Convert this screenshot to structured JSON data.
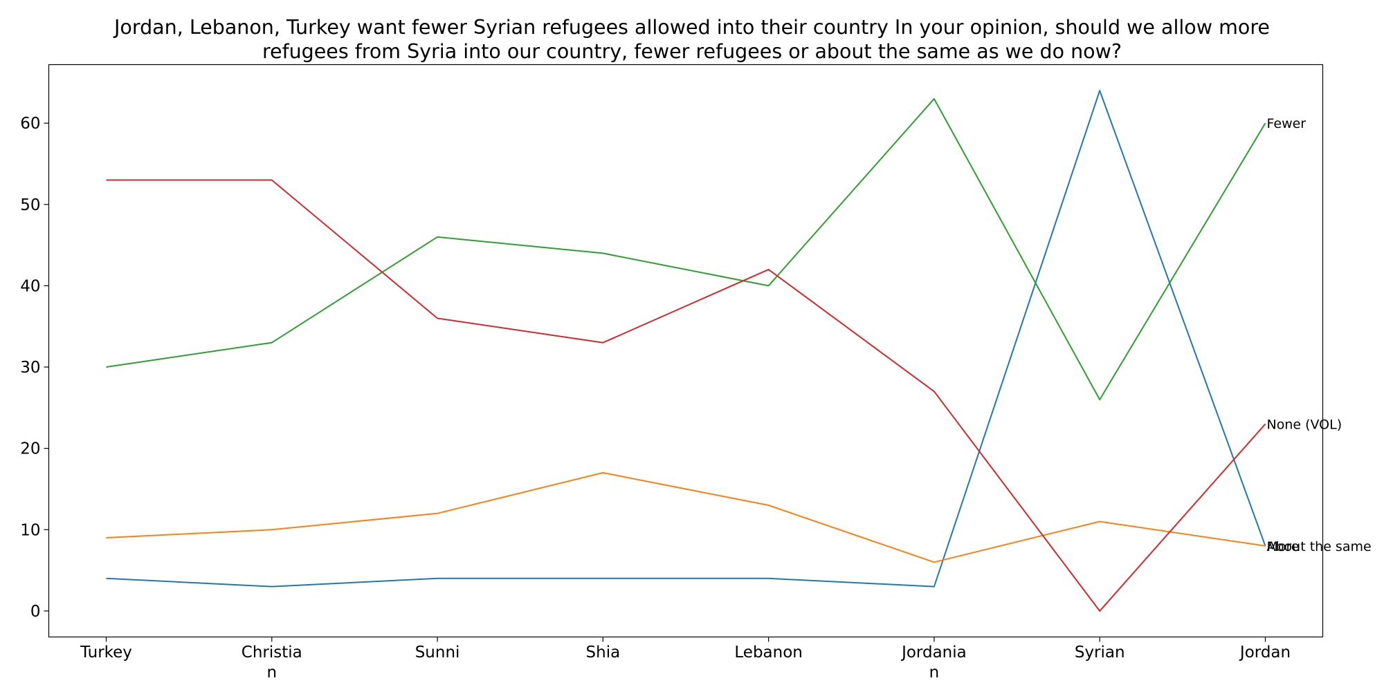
{
  "chart_data": {
    "type": "line",
    "title_lines": [
      "Jordan, Lebanon, Turkey want fewer Syrian refugees allowed into their country In your opinion, should we allow more",
      "refugees from Syria into our country, fewer refugees or about the same as we do now?"
    ],
    "xlabel": "",
    "ylabel": "",
    "categories": [
      [
        "Turkey"
      ],
      [
        "Christia",
        "n"
      ],
      [
        "Sunni"
      ],
      [
        "Shia"
      ],
      [
        "Lebanon"
      ],
      [
        "Jordania",
        "n"
      ],
      [
        "Syrian"
      ],
      [
        "Jordan"
      ]
    ],
    "ylim": [
      -3.2,
      67.2
    ],
    "yticks": [
      0,
      10,
      20,
      30,
      40,
      50,
      60
    ],
    "grid": false,
    "legend": "none",
    "series": [
      {
        "name": "More",
        "color": "#1f77b4",
        "values": [
          4,
          3,
          4,
          4,
          4,
          3,
          64,
          8
        ]
      },
      {
        "name": "About the same",
        "color": "#ff7f0e",
        "values": [
          9,
          10,
          12,
          17,
          13,
          6,
          11,
          8
        ]
      },
      {
        "name": "Fewer",
        "color": "#2ca02c",
        "values": [
          30,
          33,
          46,
          44,
          40,
          63,
          26,
          60
        ]
      },
      {
        "name": "None (VOL)",
        "color": "#d62728",
        "values": [
          53,
          53,
          36,
          33,
          42,
          27,
          0,
          23
        ]
      }
    ]
  }
}
